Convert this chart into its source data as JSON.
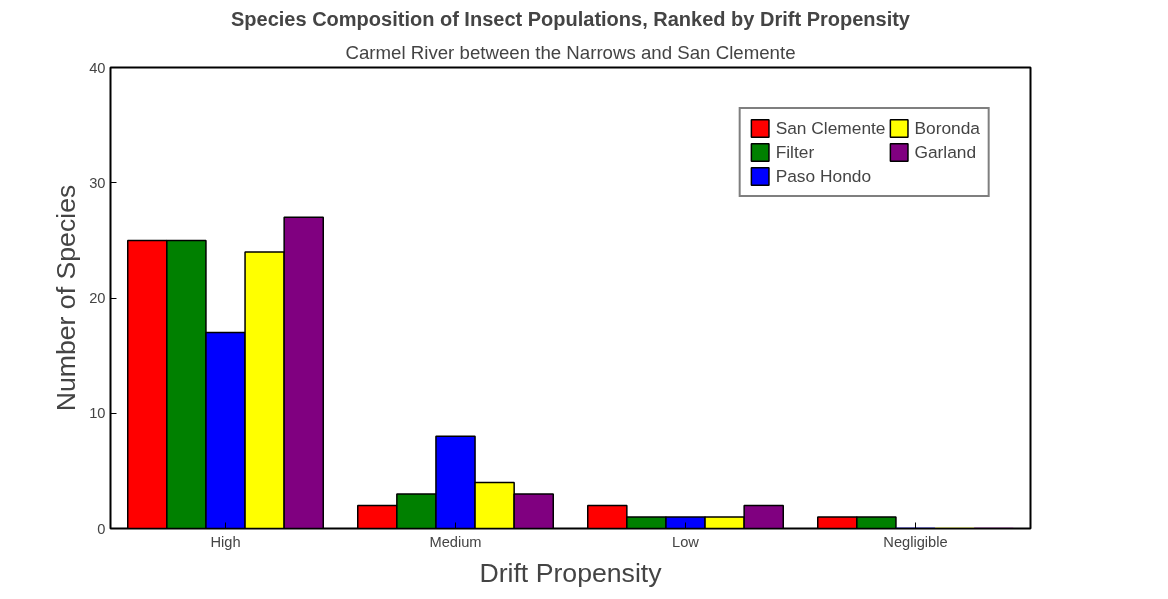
{
  "chart_data": {
    "type": "bar",
    "title": "Species Composition of Insect Populations, Ranked by Drift Propensity",
    "subtitle": "Carmel River between the Narrows and San Clemente",
    "xlabel": "Drift Propensity",
    "ylabel": "Number of Species",
    "categories": [
      "High",
      "Medium",
      "Low",
      "Negligible"
    ],
    "series": [
      {
        "name": "San Clemente",
        "color": "#ff0000",
        "values": [
          25,
          2,
          2,
          1
        ]
      },
      {
        "name": "Filter",
        "color": "#008000",
        "values": [
          25,
          3,
          1,
          1
        ]
      },
      {
        "name": "Paso Hondo",
        "color": "#0000ff",
        "values": [
          17,
          8,
          1,
          0
        ]
      },
      {
        "name": "Boronda",
        "color": "#ffff00",
        "values": [
          24,
          4,
          1,
          0
        ]
      },
      {
        "name": "Garland",
        "color": "#800080",
        "values": [
          27,
          3,
          2,
          0
        ]
      }
    ],
    "ylim": [
      0,
      40
    ],
    "yticks": [
      0,
      10,
      20,
      30,
      40
    ],
    "grid": false,
    "legend": "top right"
  }
}
